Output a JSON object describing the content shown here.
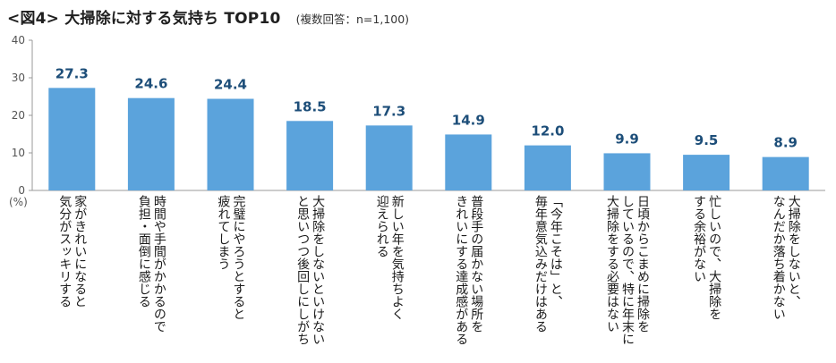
{
  "chart_data": {
    "type": "bar",
    "title": "<図4> 大掃除に対する気持ち TOP10",
    "subtitle": "(複数回答：n=1,100)",
    "ylabel": "(%)",
    "xlabel": "",
    "ylim": [
      0,
      40
    ],
    "yticks": [
      0,
      10,
      20,
      30,
      40
    ],
    "grid": false,
    "bar_color": "#5ba3dc",
    "label_color": "#1d4e79",
    "categories": [
      "家がきれいになると\n気分がスッキリする",
      "時間や手間がかかるので\n負担・面倒に感じる",
      "完璧にやろうとすると\n疲れてしまう",
      "大掃除をしないといけない\nと思いつつ後回しにしがち",
      "新しい年を気持ちよく\n迎えられる",
      "普段手の届かない場所を\nきれいにする達成感がある",
      "「今年こそは」と、\n毎年意気込みだけはある",
      "日頃からこまめに掃除を\nしているので、特に年末に\n大掃除をする必要はない",
      "忙しいので、大掃除を\nする余裕がない",
      "大掃除をしないと、\nなんだか落ち着かない"
    ],
    "values": [
      27.3,
      24.6,
      24.4,
      18.5,
      17.3,
      14.9,
      12.0,
      9.9,
      9.5,
      8.9
    ],
    "value_labels": [
      "27.3",
      "24.6",
      "24.4",
      "18.5",
      "17.3",
      "14.9",
      "12.0",
      "9.9",
      "9.5",
      "8.9"
    ]
  }
}
